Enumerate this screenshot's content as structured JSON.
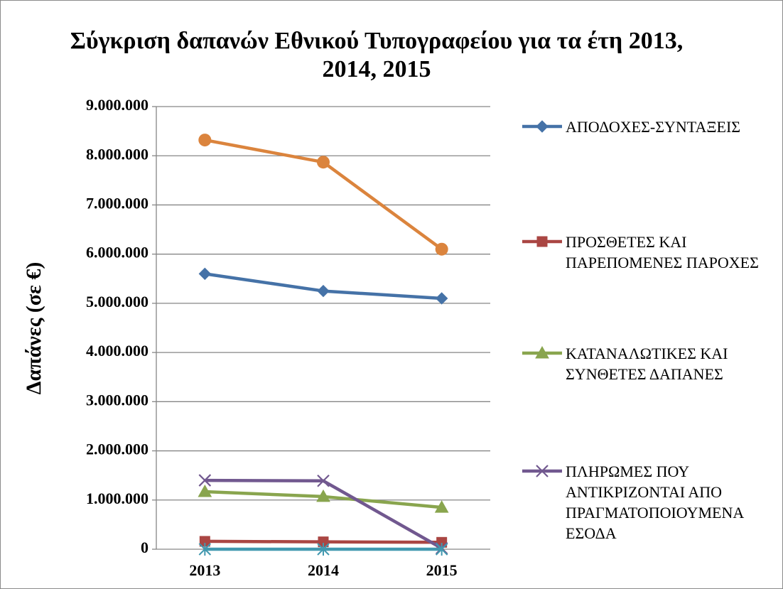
{
  "chart_data": {
    "type": "line",
    "title": "Σύγκριση δαπανών Εθνικού Τυπογραφείου για τα έτη 2013, 2014, 2015",
    "y_label": "Δαπάνες (σε €)",
    "categories": [
      "2013",
      "2014",
      "2015"
    ],
    "ylim": [
      0,
      9000000
    ],
    "yticks": [
      0,
      {
        "value": 1000000,
        "label": "1.000.000"
      },
      {
        "value": 2000000,
        "label": "2.000.000"
      },
      {
        "value": 3000000,
        "label": "3.000.000"
      },
      {
        "value": 4000000,
        "label": "4.000.000"
      },
      {
        "value": 5000000,
        "label": "5.000.000"
      },
      {
        "value": 6000000,
        "label": "6.000.000"
      },
      {
        "value": 7000000,
        "label": "7.000.000"
      },
      {
        "value": 8000000,
        "label": "8.000.000"
      },
      {
        "value": 9000000,
        "label": "9.000.000"
      }
    ],
    "grid": true,
    "legend": "right",
    "series": [
      {
        "name": "ΑΠΟΔΟΧΕΣ-ΣΥΝΤΑΞΕΙΣ",
        "color": "#4572a7",
        "marker": "diamond",
        "values": [
          5600000,
          5250000,
          5100000
        ]
      },
      {
        "name": "ΠΡΟΣΘΕΤΕΣ ΚΑΙ ΠΑΡΕΠΟΜΕΝΕΣ ΠΑΡΟΧΕΣ",
        "color": "#aa4643",
        "marker": "square",
        "values": [
          160000,
          150000,
          140000
        ]
      },
      {
        "name": "ΚΑΤΑΝΑΛΩΤΙΚΕΣ ΚΑΙ ΣΥΝΘΕΤΕΣ ΔΑΠΑΝΕΣ",
        "color": "#89a54e",
        "marker": "triangle",
        "values": [
          1170000,
          1070000,
          850000
        ]
      },
      {
        "name": "ΠΛΗΡΩΜΕΣ ΠΟΥ ΑΝΤΙΚΡΙΖΟΝΤΑΙ ΑΠΟ ΠΡΑΓΜΑΤΟΠΟΙΟΥΜΕΝΑ ΕΣΟΔΑ",
        "color": "#71588f",
        "marker": "x",
        "values": [
          1400000,
          1390000,
          20000
        ]
      },
      {
        "color": "#4198af",
        "marker": "star",
        "values": [
          0,
          0,
          0
        ]
      },
      {
        "color": "#db843d",
        "marker": "circle",
        "values": [
          8320000,
          7870000,
          6100000
        ]
      }
    ]
  }
}
